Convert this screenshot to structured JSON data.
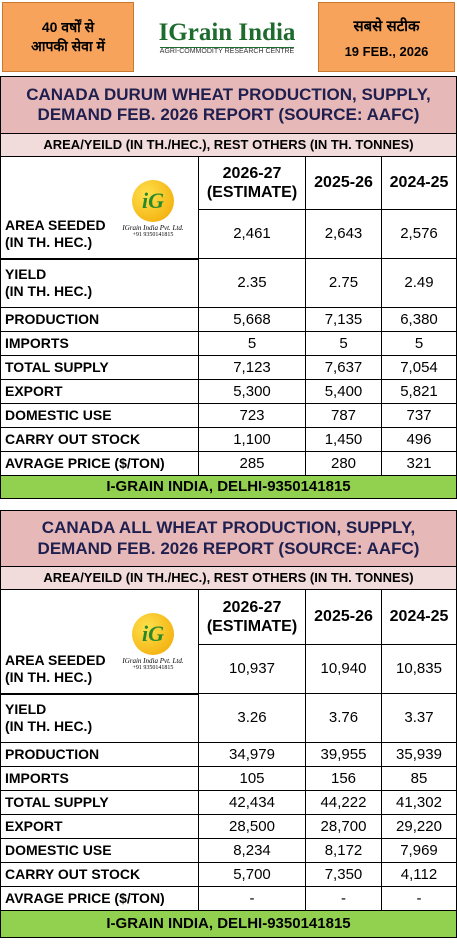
{
  "header": {
    "left": [
      "40 वर्षों से",
      "आपकी सेवा में"
    ],
    "logo": "IGrain India",
    "logo_tagline": "AGRI-COMMODITY RESEARCH CENTRE",
    "right_title": "सबसे सटीक",
    "date": "19 FEB., 2026"
  },
  "tables": [
    {
      "title": "CANADA DURUM WHEAT PRODUCTION, SUPPLY, DEMAND FEB. 2026 REPORT (SOURCE: AAFC)",
      "subtitle": "AREA/YEILD (IN TH./HEC.), REST OTHERS (IN TH. TONNES)",
      "logo": {
        "mark": "iG",
        "name": "IGrain India Pvt. Ltd.",
        "phone": "+91 9350141815"
      },
      "columns": [
        "2026-27 (ESTIMATE)",
        "2025-26",
        "2024-25"
      ],
      "rows": [
        {
          "label": [
            "AREA SEEDED",
            "(IN TH. HEC.)"
          ],
          "values": [
            "2,461",
            "2,643",
            "2,576"
          ]
        },
        {
          "label": [
            "YIELD",
            "(IN TH. HEC.)"
          ],
          "values": [
            "2.35",
            "2.75",
            "2.49"
          ]
        },
        {
          "label": [
            "PRODUCTION"
          ],
          "values": [
            "5,668",
            "7,135",
            "6,380"
          ]
        },
        {
          "label": [
            "IMPORTS"
          ],
          "values": [
            "5",
            "5",
            "5"
          ]
        },
        {
          "label": [
            "TOTAL SUPPLY"
          ],
          "values": [
            "7,123",
            "7,637",
            "7,054"
          ]
        },
        {
          "label": [
            "EXPORT"
          ],
          "values": [
            "5,300",
            "5,400",
            "5,821"
          ]
        },
        {
          "label": [
            "DOMESTIC USE"
          ],
          "values": [
            "723",
            "787",
            "737"
          ]
        },
        {
          "label": [
            "CARRY OUT STOCK"
          ],
          "values": [
            "1,100",
            "1,450",
            "496"
          ]
        },
        {
          "label": [
            "AVRAGE PRICE ($/TON)"
          ],
          "values": [
            "285",
            "280",
            "321"
          ]
        }
      ],
      "footer": "I-GRAIN INDIA, DELHI-9350141815"
    },
    {
      "title": "CANADA ALL WHEAT PRODUCTION, SUPPLY, DEMAND FEB. 2026 REPORT (SOURCE: AAFC)",
      "subtitle": "AREA/YEILD (IN TH./HEC.), REST OTHERS (IN TH. TONNES)",
      "logo": {
        "mark": "iG",
        "name": "IGrain India Pvt. Ltd.",
        "phone": "+91 9350141815"
      },
      "columns": [
        "2026-27 (ESTIMATE)",
        "2025-26",
        "2024-25"
      ],
      "rows": [
        {
          "label": [
            "AREA SEEDED",
            "(IN TH. HEC.)"
          ],
          "values": [
            "10,937",
            "10,940",
            "10,835"
          ]
        },
        {
          "label": [
            "YIELD",
            "(IN TH. HEC.)"
          ],
          "values": [
            "3.26",
            "3.76",
            "3.37"
          ]
        },
        {
          "label": [
            "PRODUCTION"
          ],
          "values": [
            "34,979",
            "39,955",
            "35,939"
          ]
        },
        {
          "label": [
            "IMPORTS"
          ],
          "values": [
            "105",
            "156",
            "85"
          ]
        },
        {
          "label": [
            "TOTAL SUPPLY"
          ],
          "values": [
            "42,434",
            "44,222",
            "41,302"
          ]
        },
        {
          "label": [
            "EXPORT"
          ],
          "values": [
            "28,500",
            "28,700",
            "29,220"
          ]
        },
        {
          "label": [
            "DOMESTIC USE"
          ],
          "values": [
            "8,234",
            "8,172",
            "7,969"
          ]
        },
        {
          "label": [
            "CARRY OUT STOCK"
          ],
          "values": [
            "5,700",
            "7,350",
            "4,112"
          ]
        },
        {
          "label": [
            "AVRAGE PRICE ($/TON)"
          ],
          "values": [
            "-",
            "-",
            "-"
          ]
        }
      ],
      "footer": "I-GRAIN INDIA, DELHI-9350141815"
    }
  ]
}
